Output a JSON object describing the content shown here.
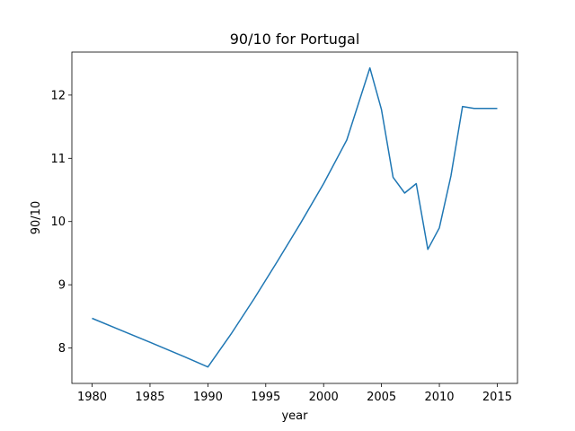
{
  "chart_data": {
    "type": "line",
    "title": "90/10 for Portugal",
    "xlabel": "year",
    "ylabel": "90/10",
    "xlim": [
      1978.25,
      2016.75
    ],
    "ylim": [
      7.44,
      12.68
    ],
    "xticks": [
      1980,
      1985,
      1990,
      1995,
      2000,
      2005,
      2010,
      2015
    ],
    "yticks": [
      8,
      9,
      10,
      11,
      12
    ],
    "grid": false,
    "color": "#1f77b4",
    "series": [
      {
        "x": [
          1980,
          1985,
          1988,
          1990,
          1992,
          1994,
          1996,
          1998,
          2000,
          2002,
          2004,
          2005,
          2006,
          2007,
          2008,
          2009,
          2010,
          2011,
          2012,
          2013,
          2015
        ],
        "values": [
          8.47,
          8.09,
          7.86,
          7.7,
          8.22,
          8.78,
          9.37,
          9.97,
          10.6,
          11.29,
          12.43,
          11.77,
          10.7,
          10.45,
          10.6,
          9.56,
          9.9,
          10.72,
          11.82,
          11.79,
          11.79
        ]
      }
    ]
  }
}
